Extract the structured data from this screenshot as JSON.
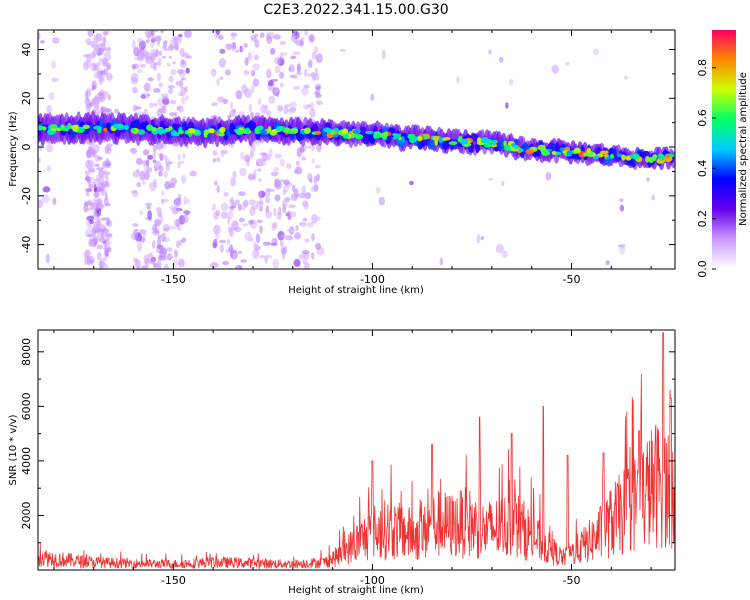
{
  "title": "C2E3.2022.341.15.00.G30",
  "chart_data": [
    {
      "type": "heatmap",
      "xlabel": "Height of straight line (km)",
      "ylabel": "Frequency (Hz)",
      "xlim": [
        -184,
        -24
      ],
      "ylim": [
        -50,
        48
      ],
      "x_ticks": [
        -150,
        -100,
        -50
      ],
      "y_ticks": [
        -40,
        -20,
        0,
        20,
        40
      ],
      "colorbar": {
        "label": "Normalized spectral amplitude",
        "range": [
          0,
          0.95
        ],
        "ticks": [
          0.0,
          0.2,
          0.4,
          0.6,
          0.8
        ],
        "colormap": [
          "#ffffff",
          "#cc99ff",
          "#6600ee",
          "#0000ff",
          "#00ccff",
          "#00ff66",
          "#ccff00",
          "#ff8800",
          "#ff0066"
        ]
      },
      "ridge": {
        "x": [
          -184,
          -170,
          -160,
          -150,
          -140,
          -130,
          -120,
          -110,
          -100,
          -90,
          -80,
          -70,
          -60,
          -50,
          -40,
          -30,
          -24
        ],
        "y": [
          7,
          8,
          7.5,
          6.5,
          6,
          7,
          6.5,
          6,
          5,
          3.5,
          2.5,
          1.5,
          -1,
          -2,
          -3.5,
          -5,
          -4
        ]
      }
    },
    {
      "type": "line",
      "xlabel": "Height of straight line (km)",
      "ylabel": "SNR (10 * v/v)",
      "xlim": [
        -184,
        -24
      ],
      "ylim": [
        0,
        8800
      ],
      "x_ticks": [
        -150,
        -100,
        -50
      ],
      "y_ticks": [
        2000,
        4000,
        6000,
        8000
      ],
      "color": "#ee3333",
      "envelope": {
        "x": [
          -184,
          -180,
          -175,
          -170,
          -160,
          -150,
          -140,
          -130,
          -120,
          -112,
          -108,
          -104,
          -100,
          -96,
          -92,
          -88,
          -84,
          -80,
          -76,
          -72,
          -68,
          -64,
          -60,
          -56,
          -52,
          -48,
          -44,
          -40,
          -36,
          -32,
          -28,
          -26,
          -24
        ],
        "y": [
          800,
          650,
          550,
          450,
          380,
          350,
          450,
          400,
          350,
          450,
          900,
          1600,
          2200,
          2400,
          2200,
          2000,
          2700,
          2600,
          2800,
          2300,
          2500,
          2700,
          2000,
          1300,
          700,
          1300,
          1900,
          2800,
          3600,
          4400,
          5200,
          5000,
          5200
        ]
      },
      "peaks": [
        {
          "x": -100,
          "y": 4000
        },
        {
          "x": -85,
          "y": 4600
        },
        {
          "x": -73,
          "y": 5600
        },
        {
          "x": -65,
          "y": 5000
        },
        {
          "x": -57,
          "y": 6000
        },
        {
          "x": -51,
          "y": 4200
        },
        {
          "x": -42,
          "y": 4300
        },
        {
          "x": -33,
          "y": 5100
        },
        {
          "x": -27,
          "y": 8700
        },
        {
          "x": -25,
          "y": 6300
        }
      ]
    }
  ]
}
